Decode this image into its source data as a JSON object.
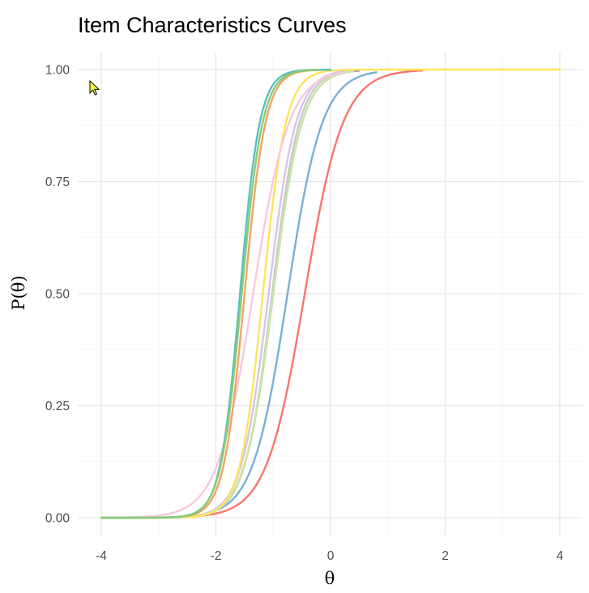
{
  "chart_data": {
    "type": "line",
    "title": "Item Characteristics Curves",
    "xlabel": "θ",
    "ylabel": "P(θ)",
    "xlim": [
      -4,
      4
    ],
    "ylim": [
      0,
      1
    ],
    "x_ticks": [
      "-4",
      "-2",
      "0",
      "2",
      "4"
    ],
    "y_ticks": [
      "0.00",
      "0.25",
      "0.50",
      "0.75",
      "1.00"
    ],
    "grid": true,
    "legend": "none",
    "series": [
      {
        "color": "#F8766D",
        "x_range": [
          -4,
          1.6
        ],
        "a": 3.0,
        "b": -0.45
      },
      {
        "color": "#7BAFD4",
        "x_range": [
          -4,
          0.8
        ],
        "a": 3.3,
        "b": -0.75
      },
      {
        "color": "#B07FC4",
        "x_range": [
          -4,
          0.5
        ],
        "a": 4.0,
        "b": -1.0
      },
      {
        "color": "#C9C9C9",
        "x_range": [
          -4,
          0.3
        ],
        "a": 4.2,
        "b": -1.02
      },
      {
        "color": "#D7C4E6",
        "x_range": [
          -4,
          0.3
        ],
        "a": 4.2,
        "b": -1.08
      },
      {
        "color": "#C7E8A5",
        "x_range": [
          -4,
          0.4
        ],
        "a": 4.0,
        "b": -1.0
      },
      {
        "color": "#FFE45C",
        "x_range": [
          -4,
          4.0
        ],
        "a": 5.0,
        "b": -1.18
      },
      {
        "color": "#FAC8DC",
        "x_range": [
          -4,
          0.2
        ],
        "a": 3.2,
        "b": -1.35
      },
      {
        "color": "#F4A460",
        "x_range": [
          -4,
          0.0
        ],
        "a": 5.5,
        "b": -1.5
      },
      {
        "color": "#5BC0BE",
        "x_range": [
          -4,
          0.0
        ],
        "a": 5.8,
        "b": -1.58
      },
      {
        "color": "#88CC77",
        "x_range": [
          -4,
          -0.2
        ],
        "a": 5.5,
        "b": -1.55
      }
    ]
  },
  "cursor_icon": "mouse-pointer-icon"
}
